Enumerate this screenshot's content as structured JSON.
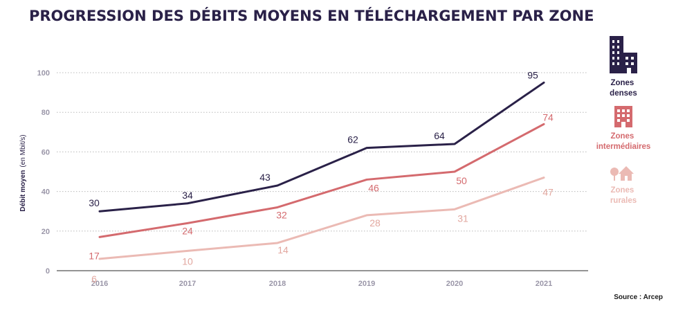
{
  "chart_data": {
    "type": "line",
    "title": "PROGRESSION DES DÉBITS MOYENS EN TÉLÉCHARGEMENT PAR ZONE",
    "ylabel_bold": "Débit moyen",
    "ylabel_rest": "(en Mbit/s)",
    "xlabel": "",
    "categories": [
      "2016",
      "2017",
      "2018",
      "2019",
      "2020",
      "2021"
    ],
    "ylim": [
      0,
      100
    ],
    "yticks": [
      0,
      20,
      40,
      60,
      80,
      100
    ],
    "grid": true,
    "legend_position": "right",
    "series": [
      {
        "name_lines": [
          "Zones",
          "denses"
        ],
        "color": "#2a2148",
        "label_color": "#2a2148",
        "values": [
          30,
          34,
          43,
          62,
          64,
          95
        ]
      },
      {
        "name_lines": [
          "Zones",
          "intermédiaires"
        ],
        "color": "#d46a6e",
        "label_color": "#d46a6e",
        "values": [
          17,
          24,
          32,
          46,
          50,
          74
        ]
      },
      {
        "name_lines": [
          "Zones",
          "rurales"
        ],
        "color": "#ebbab4",
        "label_color": "#e2a79f",
        "values": [
          6,
          10,
          14,
          28,
          31,
          47
        ]
      }
    ],
    "source": "Source : Arcep"
  },
  "colors": {
    "title": "#2a2148",
    "grid": "#b8b8b8",
    "axis": "#555555"
  },
  "icons": [
    "buildings-icon",
    "apartment-icon",
    "house-tree-icon"
  ]
}
